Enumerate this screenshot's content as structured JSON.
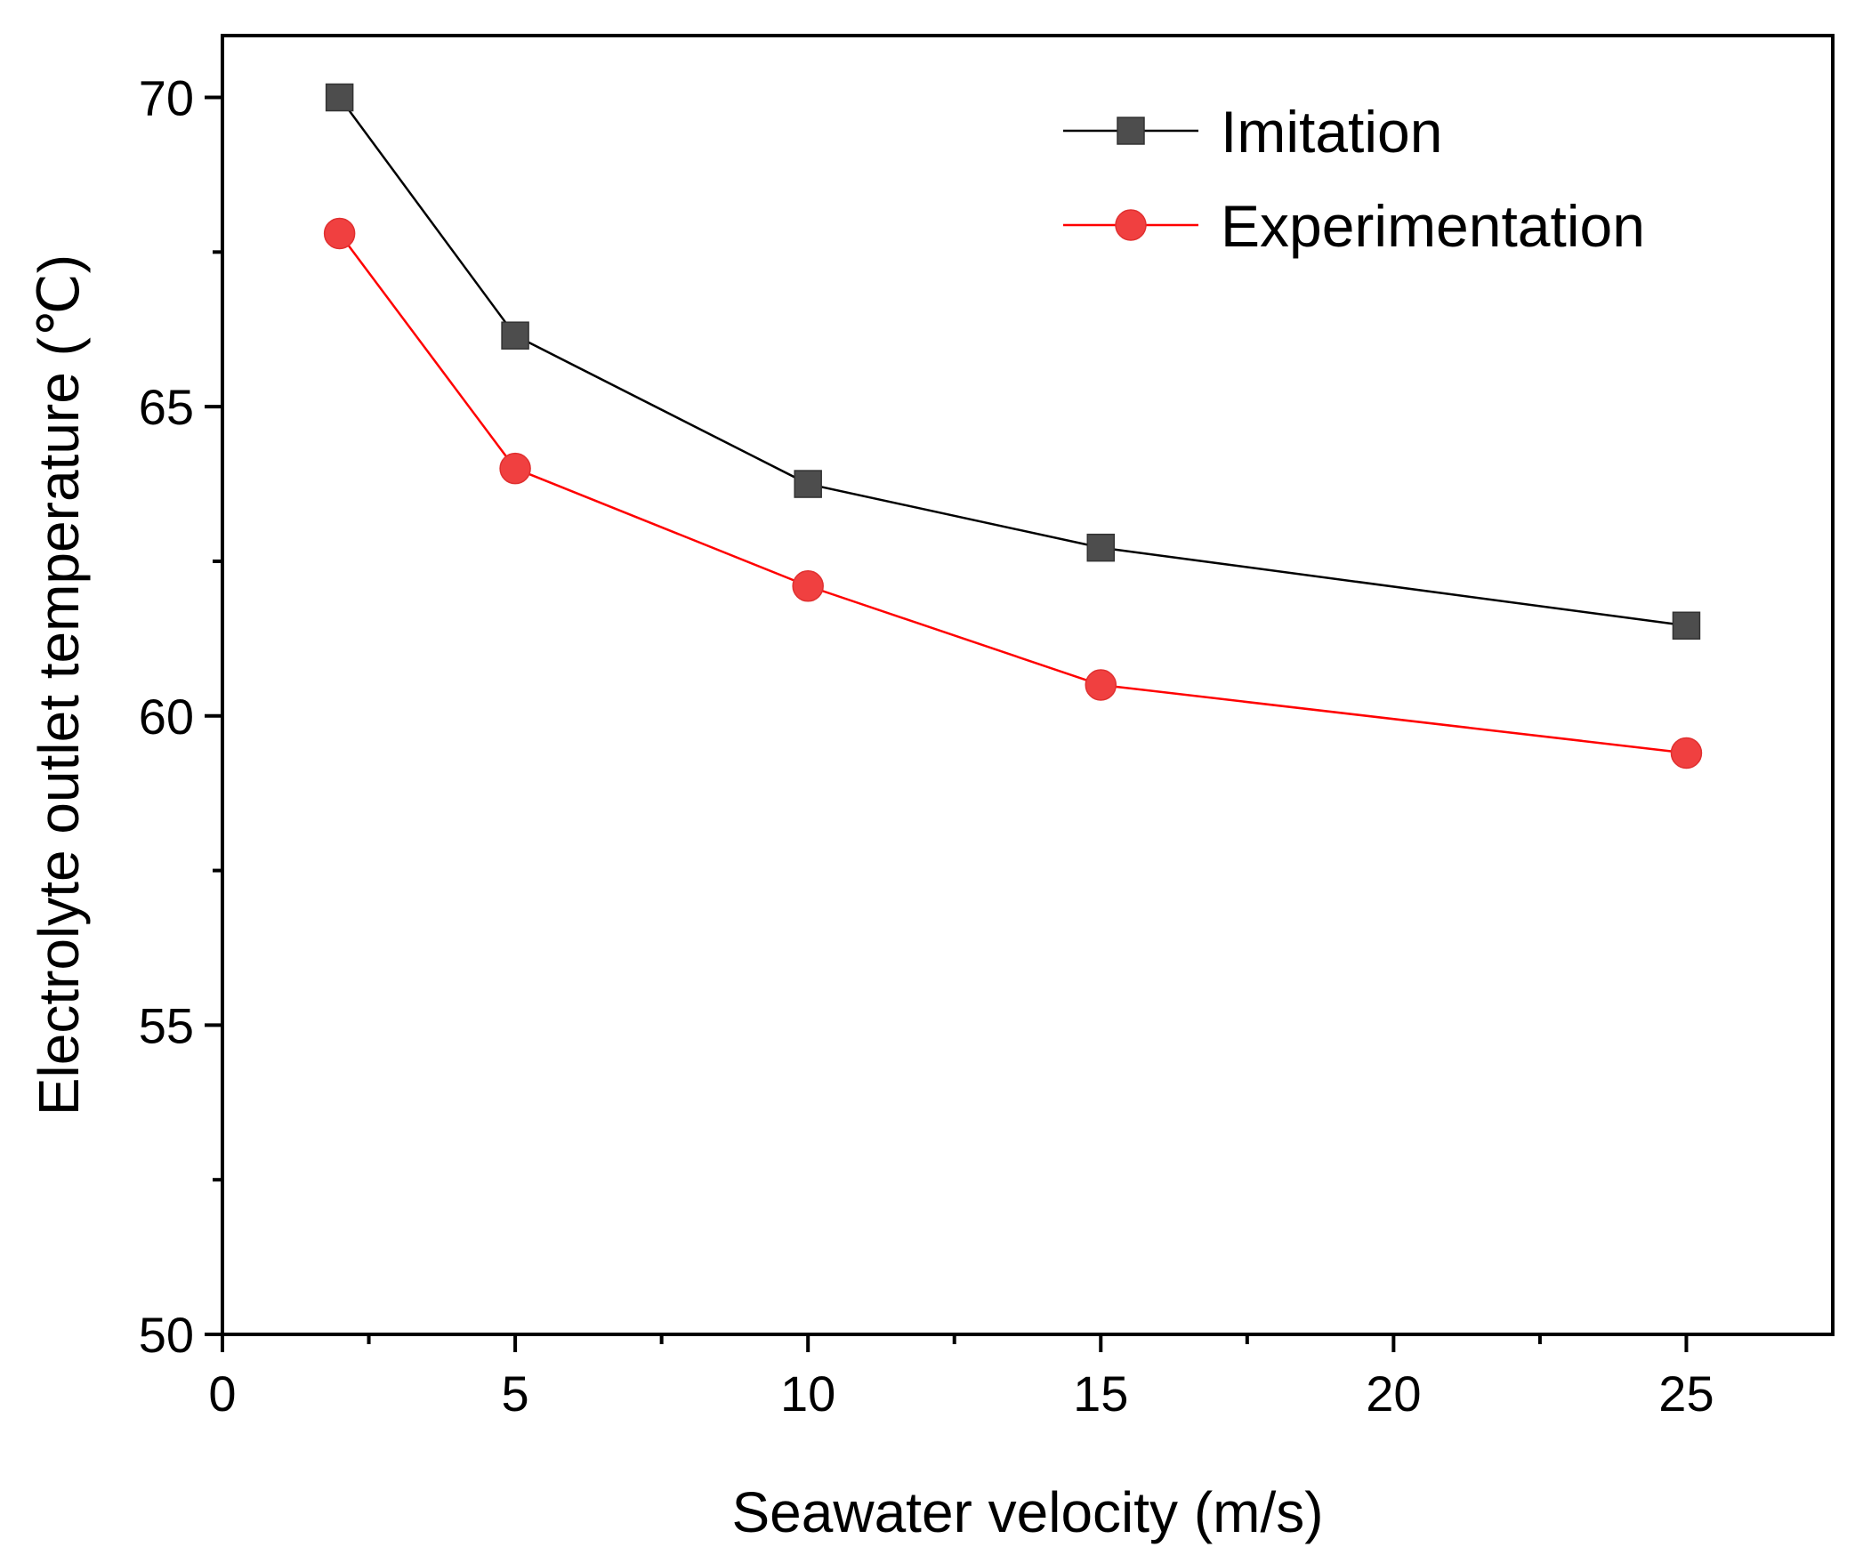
{
  "chart_data": {
    "type": "line",
    "title": "",
    "xlabel": "Seawater velocity (m/s)",
    "ylabel": "Electrolyte outlet temperature (℃)",
    "xlim": [
      0,
      27.5
    ],
    "ylim": [
      50,
      71
    ],
    "xticks": [
      0,
      5,
      10,
      15,
      20,
      25
    ],
    "xtick_labels": [
      "0",
      "5",
      "10",
      "15",
      "20",
      "25"
    ],
    "xminor": [
      2.5,
      7.5,
      12.5,
      17.5,
      22.5
    ],
    "yticks": [
      50,
      55,
      60,
      65,
      70
    ],
    "ytick_labels": [
      "50",
      "55",
      "60",
      "65",
      "70"
    ],
    "yminor": [
      52.5,
      57.5,
      62.5,
      67.5
    ],
    "grid": false,
    "legend_position": "top-right",
    "x": [
      2,
      5,
      10,
      15,
      25
    ],
    "series": [
      {
        "name": "Imitation",
        "values": [
          70.0,
          66.15,
          63.75,
          62.72,
          61.46
        ],
        "color": "#000000",
        "marker_color": "#4d4d4d",
        "marker": "square"
      },
      {
        "name": "Experimentation",
        "values": [
          67.8,
          64.0,
          62.1,
          60.5,
          59.4
        ],
        "color": "#ff0000",
        "marker_color": "#f04040",
        "marker": "circle"
      }
    ]
  }
}
